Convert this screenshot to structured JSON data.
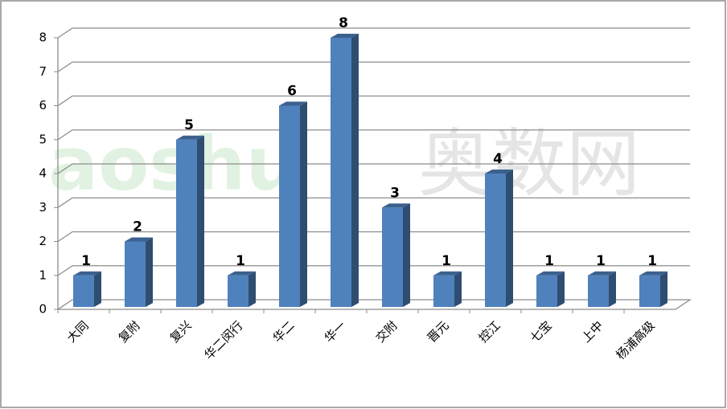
{
  "chart_data": {
    "type": "bar3d",
    "categories": [
      "大同",
      "复附",
      "复兴",
      "华二闵行",
      "华二",
      "华一",
      "交附",
      "晋元",
      "控江",
      "七宝",
      "上中",
      "杨浦高级"
    ],
    "values": [
      1,
      2,
      5,
      1,
      6,
      8,
      3,
      1,
      4,
      1,
      1,
      1
    ],
    "color": "#4f81bd",
    "ylim": [
      0,
      8
    ],
    "yticks": [
      0,
      1,
      2,
      3,
      4,
      5,
      6,
      7,
      8
    ],
    "grid": true,
    "watermark": [
      "aoshu",
      "奥数网"
    ]
  }
}
